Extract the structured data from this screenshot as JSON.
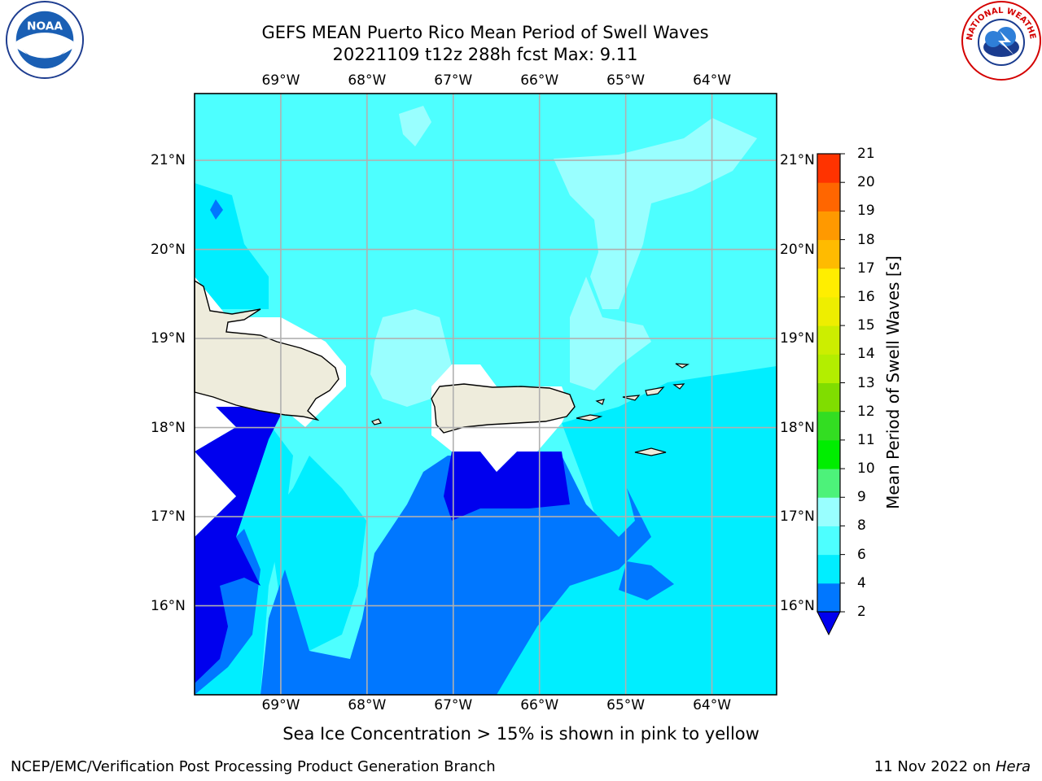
{
  "title": {
    "line1": "GEFS MEAN Puerto Rico Mean Period of Swell Waves",
    "line2": "20221109 t12z 288h fcst   Max: 9.11"
  },
  "map": {
    "region": "Puerto Rico",
    "lon_range": [
      -70.0,
      -63.25
    ],
    "lat_range": [
      15.0,
      21.75
    ],
    "lon_ticks": [
      "69°W",
      "68°W",
      "67°W",
      "66°W",
      "65°W",
      "64°W"
    ],
    "lat_ticks": [
      "21°N",
      "20°N",
      "19°N",
      "18°N",
      "17°N",
      "16°N"
    ],
    "grid": true,
    "colors": {
      "land": "#eeecdc",
      "coast": "#000000",
      "grid": "#b0b0b0",
      "level_2_4": "#0077ff",
      "level_4_6": "#00eeff",
      "level_6_8": "#4dffff",
      "level_8_9": "#99ffff",
      "below_2": "#0000ee",
      "missing": "#ffffff"
    }
  },
  "colorbar": {
    "title": "Mean Period of Swell Waves [s]",
    "levels": [
      "2",
      "4",
      "6",
      "8",
      "9",
      "10",
      "11",
      "12",
      "13",
      "14",
      "15",
      "16",
      "17",
      "18",
      "19",
      "20",
      "21"
    ],
    "colors": [
      "#0077ff",
      "#00eeff",
      "#4dffff",
      "#99ffff",
      "#4df27a",
      "#00ee00",
      "#33dd22",
      "#80dd00",
      "#b3ee00",
      "#ccee00",
      "#eeee00",
      "#ffee00",
      "#ffbb00",
      "#ff9900",
      "#ff6600",
      "#ff3300"
    ],
    "extend_color": "#0000ee"
  },
  "subtitle": "Sea Ice Concentration > 15% is shown in pink to yellow",
  "footer": {
    "left": "NCEP/EMC/Verification Post Processing Product Generation Branch",
    "right_date": "11 Nov 2022 on ",
    "right_machine": "Hera"
  },
  "logos": {
    "left": "NOAA",
    "right": "NATIONAL WEATHER SERVICE"
  }
}
